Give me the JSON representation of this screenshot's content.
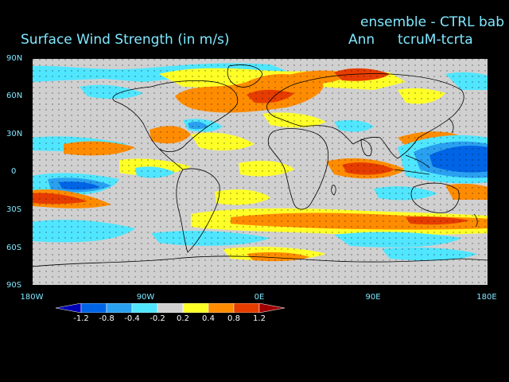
{
  "header": {
    "title": "Surface Wind Strength (in m/s)",
    "run": "ensemble - CTRL bab",
    "season": "Ann",
    "experiment": "tcruM-tcrta"
  },
  "axes": {
    "lat_labels": [
      "90N",
      "60N",
      "30N",
      "0",
      "30S",
      "60S",
      "90S"
    ],
    "lon_labels": [
      "180W",
      "90W",
      "0E",
      "90E",
      "180E"
    ]
  },
  "colorbar": {
    "levels": [
      "-1.2",
      "-0.8",
      "-0.4",
      "-0.2",
      "0.2",
      "0.4",
      "0.8",
      "1.2"
    ],
    "colors": [
      "#0000b4",
      "#0064e6",
      "#2aa0f0",
      "#50e6ff",
      "#d0d0d0",
      "#ffff28",
      "#ff8c00",
      "#e63c00",
      "#a00000"
    ]
  },
  "map": {
    "background": "#d0d0d0",
    "coastline_color": "#000000"
  }
}
